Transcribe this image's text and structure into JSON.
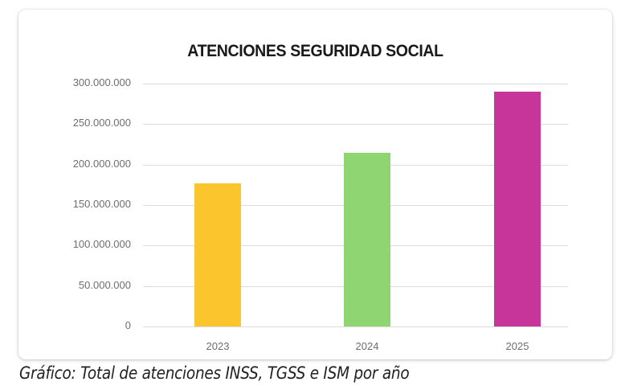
{
  "chart_data": {
    "type": "bar",
    "title": "ATENCIONES SEGURIDAD SOCIAL",
    "categories": [
      "2023",
      "2024",
      "2025"
    ],
    "values": [
      177000000,
      215000000,
      290000000
    ],
    "colors": [
      "#fbc52d",
      "#8fd672",
      "#c8359a"
    ],
    "xlabel": "",
    "ylabel": "",
    "ylim": [
      0,
      300000000
    ],
    "yticks": [
      0,
      50000000,
      100000000,
      150000000,
      200000000,
      250000000,
      300000000
    ],
    "ytick_labels": [
      "0",
      "50.000.000",
      "100.000.000",
      "150.000.000",
      "200.000.000",
      "250.000.000",
      "300.000.000"
    ],
    "grid": true,
    "legend": null
  },
  "caption": "Gráfico: Total de atenciones INSS, TGSS e ISM por año"
}
